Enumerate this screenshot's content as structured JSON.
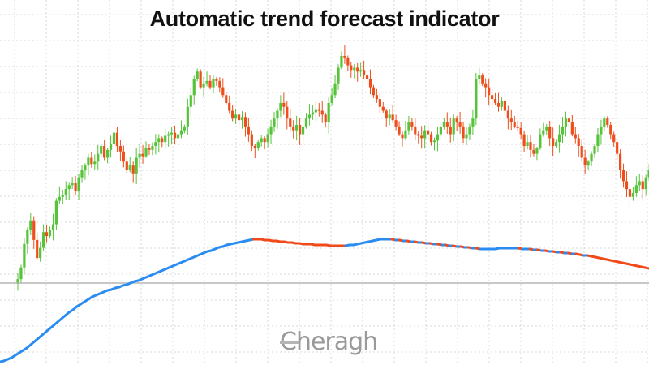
{
  "chart_data": [
    {
      "type": "candlestick",
      "title": "Automatic trend forecast indicator",
      "x": [
        1,
        2,
        3,
        4,
        5,
        6,
        7,
        8,
        9,
        10,
        11,
        12,
        13,
        14,
        15,
        16,
        17,
        18,
        19,
        20,
        21,
        22,
        23,
        24,
        25,
        26,
        27,
        28,
        29,
        30,
        31,
        32,
        33,
        34,
        35,
        36,
        37,
        38,
        39,
        40,
        41,
        42,
        43,
        44,
        45,
        46,
        47,
        48,
        49,
        50,
        51,
        52,
        53,
        54,
        55,
        56,
        57,
        58,
        59,
        60,
        61,
        62,
        63,
        64,
        65,
        66,
        67,
        68,
        69,
        70,
        71,
        72,
        73,
        74,
        75,
        76,
        77,
        78,
        79,
        80,
        81,
        82,
        83,
        84,
        85,
        86,
        87,
        88,
        89,
        90,
        91,
        92,
        93,
        94,
        95,
        96,
        97,
        98,
        99,
        100,
        101,
        102,
        103,
        104,
        105,
        106,
        107,
        108,
        109,
        110,
        111,
        112,
        113,
        114,
        115,
        116,
        117,
        118,
        119,
        120,
        121,
        122,
        123,
        124,
        125,
        126,
        127,
        128,
        129,
        130,
        131,
        132,
        133,
        134,
        135,
        136,
        137,
        138,
        139,
        140,
        141,
        142,
        143,
        144,
        145,
        146,
        147,
        148,
        149,
        150,
        151,
        152,
        153,
        154,
        155,
        156,
        157,
        158,
        159,
        160,
        161,
        162,
        163,
        164,
        165,
        166,
        167,
        168,
        169,
        170,
        171,
        172,
        173,
        174,
        175,
        176,
        177,
        178,
        179,
        180,
        181,
        182,
        183,
        184,
        185,
        186,
        187,
        188,
        189,
        190,
        191,
        192,
        193,
        194,
        195,
        196,
        197,
        198,
        199,
        200
      ],
      "close_series": [
        345,
        330,
        300,
        282,
        270,
        295,
        318,
        305,
        285,
        290,
        282,
        275,
        245,
        240,
        238,
        230,
        225,
        222,
        232,
        215,
        205,
        200,
        190,
        198,
        195,
        185,
        175,
        190,
        180,
        172,
        158,
        175,
        182,
        195,
        205,
        200,
        210,
        190,
        185,
        188,
        178,
        180,
        175,
        170,
        165,
        170,
        162,
        160,
        158,
        165,
        160,
        155,
        150,
        125,
        110,
        90,
        80,
        100,
        95,
        92,
        100,
        90,
        92,
        100,
        110,
        120,
        130,
        140,
        135,
        142,
        138,
        150,
        160,
        175,
        178,
        170,
        165,
        170,
        160,
        150,
        140,
        130,
        120,
        125,
        140,
        150,
        155,
        148,
        160,
        150,
        140,
        135,
        132,
        128,
        130,
        135,
        145,
        120,
        110,
        95,
        75,
        60,
        62,
        72,
        78,
        75,
        80,
        78,
        85,
        90,
        100,
        110,
        115,
        125,
        130,
        140,
        135,
        142,
        150,
        160,
        165,
        155,
        145,
        150,
        160,
        162,
        165,
        155,
        160,
        170,
        168,
        160,
        150,
        145,
        150,
        160,
        140,
        145,
        150,
        165,
        160,
        150,
        140,
        90,
        85,
        95,
        100,
        110,
        115,
        120,
        125,
        118,
        130,
        140,
        145,
        150,
        152,
        160,
        175,
        170,
        180,
        185,
        178,
        160,
        155,
        150,
        165,
        175,
        170,
        160,
        150,
        140,
        145,
        160,
        165,
        175,
        190,
        200,
        195,
        185,
        175,
        160,
        150,
        140,
        148,
        160,
        170,
        185,
        205,
        220,
        230,
        240,
        235,
        225,
        220,
        230,
        215,
        205,
        210,
        190
      ],
      "candle_sample_every": 1,
      "ylim": [
        30,
        350
      ],
      "grid": true
    },
    {
      "type": "line",
      "series": [
        {
          "values": [
            446,
            445,
            443,
            441,
            438,
            435,
            432,
            429,
            425,
            421,
            417,
            413,
            409,
            405,
            401,
            397,
            393,
            389,
            385,
            382,
            378,
            375,
            372,
            369,
            366,
            364,
            362,
            360,
            358,
            357,
            355,
            354,
            352,
            351,
            349,
            347,
            346,
            344,
            342,
            340,
            338,
            336,
            334,
            332,
            330,
            328,
            326,
            324,
            322,
            320,
            318,
            316,
            314,
            312,
            310,
            309,
            307,
            305,
            304,
            302,
            301,
            300,
            299,
            298,
            297,
            296,
            295,
            295,
            295,
            296,
            296,
            297,
            297,
            298,
            298,
            299,
            299,
            300,
            300,
            301,
            301,
            301,
            302,
            302,
            302,
            302,
            303,
            303,
            303,
            303,
            303,
            302,
            302,
            301,
            300,
            299,
            298,
            297,
            296,
            295,
            295,
            295,
            295,
            296,
            296,
            297,
            297,
            298,
            298,
            299,
            299,
            300,
            300,
            301,
            301,
            302,
            302,
            303,
            303,
            304,
            304,
            305,
            305,
            306,
            306,
            307,
            307,
            307,
            307,
            307,
            306,
            306,
            306,
            306,
            306,
            306,
            307,
            307,
            307,
            308,
            308,
            309,
            309,
            310,
            310,
            311,
            311,
            312,
            312,
            313,
            313,
            314,
            315,
            315,
            316,
            317,
            318,
            319,
            320,
            321,
            322,
            323,
            324,
            325,
            326,
            327,
            328,
            329,
            330,
            331
          ],
          "colors": [
            "#2a8cf0",
            "#f04a1a"
          ]
        }
      ],
      "ylim": [
        460,
        290
      ]
    }
  ],
  "watermark": "Cheragh",
  "colors": {
    "bull": "#55c43a",
    "bear": "#ee4e1c",
    "line_up": "#2a8cf0",
    "line_down": "#f04a1a",
    "grid": "#d9d9d9",
    "divider": "#b5b5b5"
  }
}
